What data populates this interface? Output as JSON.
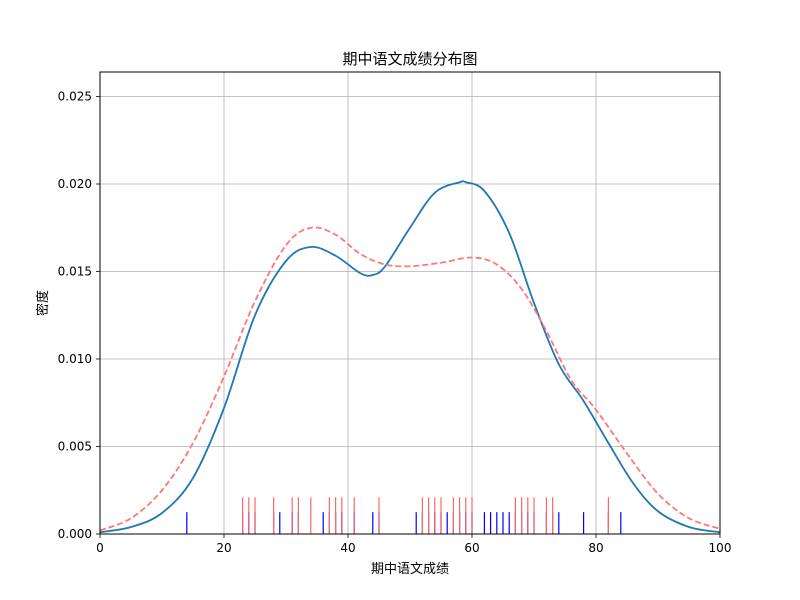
{
  "chart_data": {
    "type": "line",
    "title": "期中语文成绩分布图",
    "xlabel": "期中语文成绩",
    "ylabel": "密度",
    "xlim": [
      0,
      100
    ],
    "ylim": [
      0,
      0.0264
    ],
    "xticks": [
      0,
      20,
      40,
      60,
      80,
      100
    ],
    "yticks": [
      0.0,
      0.005,
      0.01,
      0.015,
      0.02,
      0.025
    ],
    "xtick_labels": [
      "0",
      "20",
      "40",
      "60",
      "80",
      "100"
    ],
    "ytick_labels": [
      "0.000",
      "0.005",
      "0.010",
      "0.015",
      "0.020",
      "0.025"
    ],
    "grid": true,
    "series": [
      {
        "color": "#1f77b4",
        "style": "solid",
        "x": [
          0,
          5,
          10,
          15,
          20,
          25,
          30,
          34,
          38,
          42,
          44,
          46,
          50,
          54,
          58,
          59,
          62,
          66,
          70,
          74,
          78,
          82,
          86,
          90,
          95,
          100
        ],
        "y": [
          0.0001,
          0.0004,
          0.0012,
          0.0032,
          0.0072,
          0.0125,
          0.0156,
          0.0164,
          0.0159,
          0.0149,
          0.0148,
          0.0153,
          0.0175,
          0.0195,
          0.0201,
          0.0201,
          0.0196,
          0.0172,
          0.0132,
          0.0097,
          0.0076,
          0.0052,
          0.0029,
          0.0013,
          0.0004,
          0.0001
        ]
      },
      {
        "color": "#ff7777",
        "style": "dashed",
        "x": [
          0,
          5,
          10,
          15,
          20,
          25,
          30,
          34,
          38,
          42,
          46,
          50,
          55,
          60,
          64,
          68,
          72,
          76,
          80,
          85,
          90,
          95,
          100
        ],
        "y": [
          0.0002,
          0.0009,
          0.0025,
          0.0052,
          0.009,
          0.0133,
          0.0165,
          0.0175,
          0.0171,
          0.016,
          0.0154,
          0.0153,
          0.0155,
          0.0158,
          0.0154,
          0.014,
          0.0116,
          0.0088,
          0.0071,
          0.0046,
          0.0023,
          0.0009,
          0.0003
        ]
      }
    ],
    "rug": [
      {
        "color": "#0000ff",
        "height": 0.00125,
        "values": [
          14,
          23,
          24,
          25,
          28,
          29,
          31,
          32,
          36,
          37,
          38,
          39,
          41,
          44,
          45,
          51,
          52,
          53,
          54,
          55,
          56,
          57,
          58,
          59,
          60,
          62,
          63,
          64,
          65,
          66,
          67,
          68,
          69,
          70,
          72,
          73,
          74,
          78,
          82,
          84
        ]
      },
      {
        "color": "#ff6666",
        "height": 0.0021,
        "values": [
          23,
          24,
          25,
          28,
          31,
          32,
          34,
          37,
          38,
          39,
          41,
          45,
          52,
          53,
          54,
          55,
          57,
          58,
          59,
          60,
          67,
          68,
          69,
          70,
          72,
          73,
          82
        ]
      }
    ]
  }
}
